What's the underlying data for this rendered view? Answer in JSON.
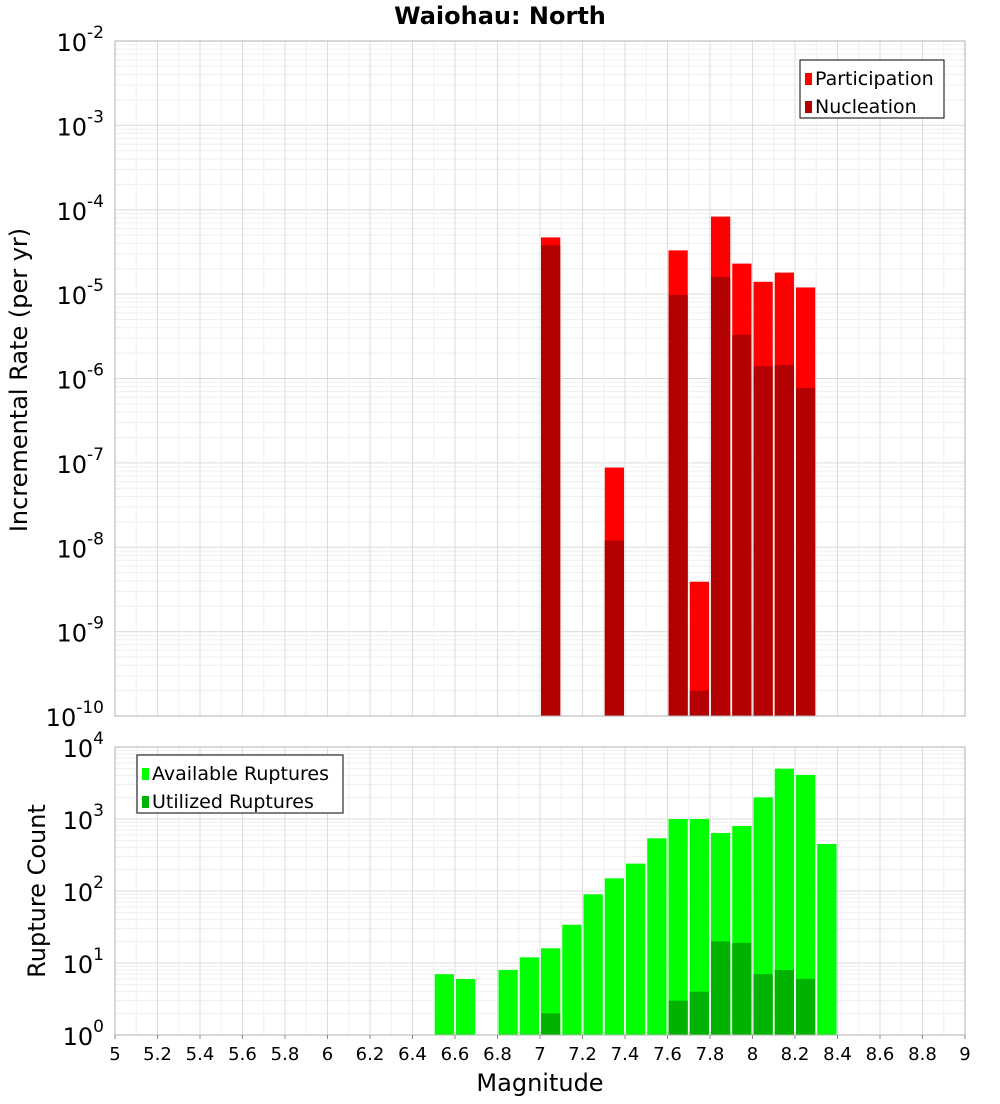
{
  "chart_data": [
    {
      "type": "bar",
      "title": "Waiohau: North",
      "ylabel": "Incremental Rate (per yr)",
      "xlabel": "",
      "x_scale": "linear",
      "y_scale": "log",
      "xlim": [
        5,
        9
      ],
      "ylim_exponent": [
        -10,
        -2
      ],
      "ylim": [
        1e-10,
        0.01
      ],
      "grid": true,
      "legend_position": "top-right",
      "bin_width": 0.1,
      "series": [
        {
          "name": "Participation",
          "color": "#ff0000",
          "x": [
            7.05,
            7.35,
            7.65,
            7.75,
            7.85,
            7.95,
            8.05,
            8.15,
            8.25
          ],
          "values": [
            4.7e-05,
            8.8e-08,
            3.3e-05,
            3.9e-09,
            8.3e-05,
            2.3e-05,
            1.4e-05,
            1.8e-05,
            1.2e-05
          ]
        },
        {
          "name": "Nucleation",
          "color": "#b30000",
          "x": [
            7.05,
            7.35,
            7.65,
            7.75,
            7.85,
            7.95,
            8.05,
            8.15,
            8.25
          ],
          "values": [
            3.8e-05,
            1.2e-08,
            9.8e-06,
            2e-10,
            1.6e-05,
            3.3e-06,
            1.4e-06,
            1.45e-06,
            7.7e-07
          ]
        }
      ]
    },
    {
      "type": "bar",
      "title": "",
      "ylabel": "Rupture Count",
      "xlabel": "Magnitude",
      "x_scale": "linear",
      "y_scale": "log",
      "xlim": [
        5,
        9
      ],
      "ylim_exponent": [
        0,
        4
      ],
      "ylim": [
        1,
        10000
      ],
      "grid": true,
      "legend_position": "top-left",
      "bin_width": 0.1,
      "x_tick_labels": [
        "5",
        "5.2",
        "5.4",
        "5.6",
        "5.8",
        "6",
        "6.2",
        "6.4",
        "6.6",
        "6.8",
        "7",
        "7.2",
        "7.4",
        "7.6",
        "7.8",
        "8",
        "8.2",
        "8.4",
        "8.6",
        "8.8",
        "9"
      ],
      "series": [
        {
          "name": "Available Ruptures",
          "color": "#00ff00",
          "x": [
            6.55,
            6.65,
            6.85,
            6.95,
            7.05,
            7.15,
            7.25,
            7.35,
            7.45,
            7.55,
            7.65,
            7.75,
            7.85,
            7.95,
            8.05,
            8.15,
            8.25,
            8.35
          ],
          "values": [
            7,
            6,
            8,
            12,
            16,
            34,
            90,
            150,
            240,
            540,
            1000,
            1000,
            640,
            800,
            2000,
            5000,
            4100,
            450
          ]
        },
        {
          "name": "Utilized Ruptures",
          "color": "#00b300",
          "x": [
            7.05,
            7.35,
            7.65,
            7.75,
            7.85,
            7.95,
            8.05,
            8.15,
            8.25
          ],
          "values": [
            2,
            1,
            3,
            4,
            20,
            19,
            7,
            8,
            6
          ]
        }
      ]
    }
  ]
}
